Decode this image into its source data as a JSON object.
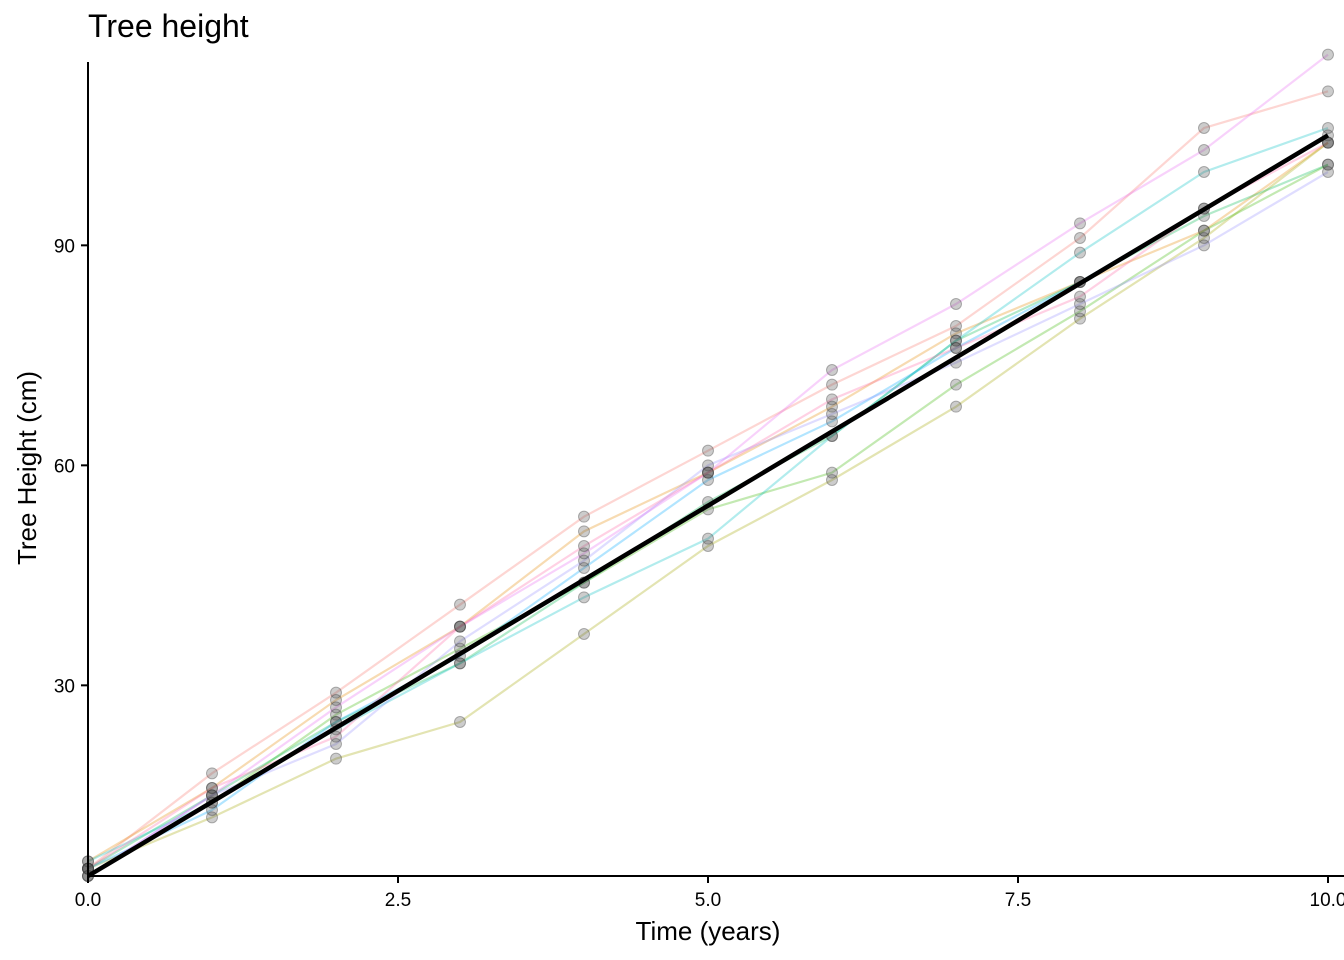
{
  "chart_data": {
    "type": "line",
    "title": "Tree height",
    "xlabel": "Time (years)",
    "ylabel": "Tree Height (cm)",
    "xlim": [
      0,
      10
    ],
    "ylim": [
      4,
      115
    ],
    "x_ticks": [
      0,
      2.5,
      5,
      7.5,
      10
    ],
    "x_tick_labels": [
      "0.0",
      "2.5",
      "5.0",
      "7.5",
      "10.0"
    ],
    "y_ticks": [
      30,
      60,
      90
    ],
    "y_tick_labels": [
      "30",
      "60",
      "90"
    ],
    "grid": false,
    "legend": "none",
    "x": [
      0,
      1,
      2,
      3,
      4,
      5,
      6,
      7,
      8,
      9,
      10
    ],
    "series": [
      {
        "color": "#F8766D",
        "values": [
          5,
          18,
          29,
          41,
          53,
          62,
          71,
          79,
          91,
          106,
          111
        ]
      },
      {
        "color": "#E58700",
        "values": [
          6,
          16,
          28,
          38,
          51,
          59,
          68,
          78,
          85,
          92,
          104
        ]
      },
      {
        "color": "#A3A500",
        "values": [
          5,
          12,
          20,
          25,
          37,
          49,
          58,
          68,
          80,
          91,
          104
        ]
      },
      {
        "color": "#39B600",
        "values": [
          4,
          14,
          26,
          35,
          44,
          54,
          59,
          71,
          81,
          92,
          101
        ]
      },
      {
        "color": "#00BB4E",
        "values": [
          5,
          15,
          25,
          33,
          44,
          55,
          64,
          77,
          85,
          94,
          101
        ]
      },
      {
        "color": "#00BFC4",
        "values": [
          6,
          14,
          24,
          33,
          42,
          50,
          64,
          77,
          89,
          100,
          106
        ]
      },
      {
        "color": "#00A9FF",
        "values": [
          5,
          13,
          25,
          34,
          46,
          58,
          66,
          76,
          85,
          95,
          105
        ]
      },
      {
        "color": "#9590FF",
        "values": [
          4,
          15,
          22,
          36,
          47,
          60,
          67,
          74,
          82,
          90,
          100
        ]
      },
      {
        "color": "#E76BF3",
        "values": [
          4,
          15,
          27,
          38,
          48,
          59,
          73,
          82,
          93,
          103,
          116
        ]
      },
      {
        "color": "#FF67A4",
        "values": [
          5,
          16,
          23,
          38,
          49,
          59,
          69,
          76,
          83,
          95,
          104
        ]
      }
    ],
    "trend": {
      "color": "#000000",
      "values": [
        4,
        14.1,
        24.2,
        34.3,
        44.4,
        54.5,
        64.6,
        74.7,
        84.8,
        94.9,
        105
      ]
    }
  }
}
